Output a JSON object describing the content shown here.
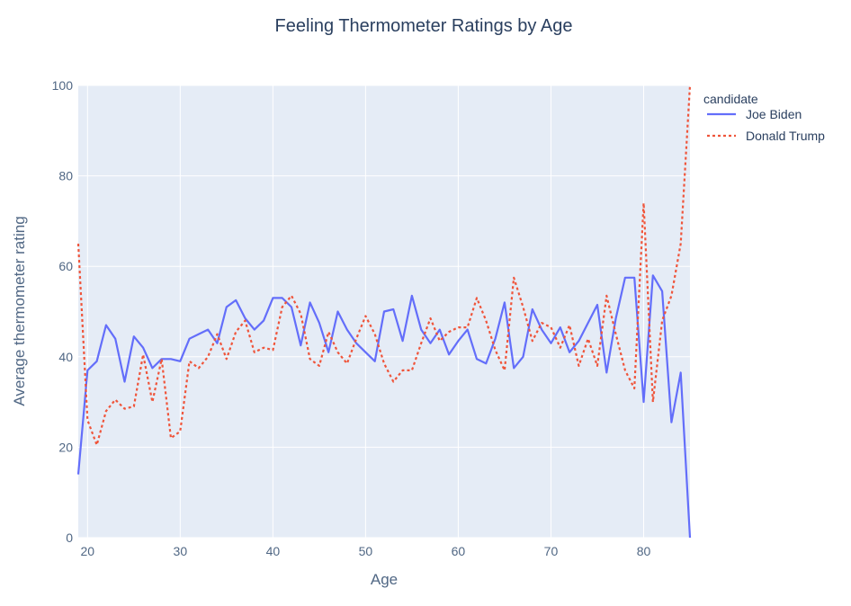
{
  "chart_data": {
    "type": "line",
    "title": "Feeling Thermometer Ratings by Age",
    "xlabel": "Age",
    "ylabel": "Average thermometer rating",
    "xlim": [
      19,
      85
    ],
    "ylim": [
      0,
      100
    ],
    "xticks": [
      20,
      30,
      40,
      50,
      60,
      70,
      80
    ],
    "yticks": [
      0,
      20,
      40,
      60,
      80,
      100
    ],
    "grid": true,
    "legend_title": "candidate",
    "legend_position": "top-right",
    "x": [
      19,
      20,
      21,
      22,
      23,
      24,
      25,
      26,
      27,
      28,
      29,
      30,
      31,
      32,
      33,
      34,
      35,
      36,
      37,
      38,
      39,
      40,
      41,
      42,
      43,
      44,
      45,
      46,
      47,
      48,
      49,
      50,
      51,
      52,
      53,
      54,
      55,
      56,
      57,
      58,
      59,
      60,
      61,
      62,
      63,
      64,
      65,
      66,
      67,
      68,
      69,
      70,
      71,
      72,
      73,
      74,
      75,
      76,
      77,
      78,
      79,
      80,
      81,
      82,
      83,
      84,
      85
    ],
    "series": [
      {
        "name": "Joe Biden",
        "color": "#636efa",
        "dash": "solid",
        "values": [
          14,
          37,
          39,
          47,
          44,
          34.5,
          44.5,
          42,
          37.5,
          39.5,
          39.5,
          39,
          44,
          45,
          46,
          43,
          51,
          52.5,
          48.5,
          46,
          48,
          53,
          53,
          51,
          42.5,
          52,
          47.5,
          41,
          50,
          46,
          43,
          41,
          39,
          50,
          50.5,
          43.5,
          53.5,
          46,
          43,
          46,
          40.5,
          43.5,
          46,
          39.5,
          38.5,
          44,
          52,
          37.5,
          40,
          50.5,
          46,
          43,
          46.5,
          41,
          43.5,
          47.5,
          51.5,
          36.5,
          48.5,
          57.5,
          57.5,
          30,
          58,
          54.5,
          25.5,
          36.5,
          0
        ]
      },
      {
        "name": "Donald Trump",
        "color": "#ef553b",
        "dash": "dot",
        "values": [
          65,
          26,
          20.5,
          28,
          30.5,
          28.5,
          29,
          40.5,
          30,
          39.5,
          22,
          23.5,
          39,
          37.5,
          40,
          45,
          39.5,
          45.5,
          48,
          41,
          42,
          41.5,
          51,
          53.5,
          49.5,
          39.5,
          38,
          45.5,
          41,
          38.5,
          44,
          49,
          45,
          38.5,
          34.5,
          37,
          37,
          43,
          48.5,
          43.5,
          45.5,
          46.5,
          46.5,
          53,
          48,
          41.5,
          37,
          57.5,
          51,
          43.5,
          47.5,
          46.5,
          42,
          47,
          38,
          44,
          38,
          53.5,
          45,
          37,
          33,
          74,
          30,
          48,
          53.5,
          65,
          100
        ]
      }
    ]
  }
}
